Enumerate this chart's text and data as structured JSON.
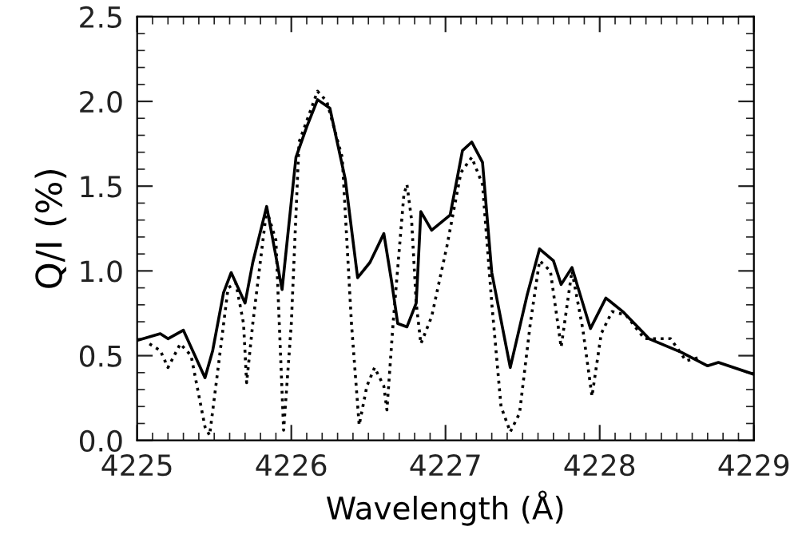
{
  "chart_data": {
    "type": "line",
    "xlabel": "Wavelength (Å)",
    "ylabel": "Q/I (%)",
    "xlim": [
      4225,
      4229
    ],
    "xticks": [
      4225,
      4226,
      4227,
      4228,
      4229
    ],
    "ylim": [
      0,
      2.5
    ],
    "yticks": [
      {
        "value": 0,
        "label": "0.0"
      },
      0.5,
      {
        "value": 1,
        "label": "1.0"
      },
      1.5,
      {
        "value": 2,
        "label": "2.0"
      },
      2.5
    ],
    "grid": false,
    "legend": false,
    "marker": "none",
    "series": [
      {
        "color": "#000000",
        "line_style": "solid",
        "x": [
          4225.0,
          4225.15,
          4225.2,
          4225.3,
          4225.44,
          4225.49,
          4225.56,
          4225.61,
          4225.7,
          4225.75,
          4225.84,
          4225.94,
          4226.03,
          4226.1,
          4226.17,
          4226.25,
          4226.35,
          4226.43,
          4226.51,
          4226.6,
          4226.65,
          4226.69,
          4226.75,
          4226.81,
          4226.84,
          4226.91,
          4227.03,
          4227.11,
          4227.17,
          4227.24,
          4227.3,
          4227.42,
          4227.53,
          4227.61,
          4227.7,
          4227.75,
          4227.82,
          4227.89,
          4227.94,
          4228.04,
          4228.15,
          4228.32,
          4228.53,
          4228.7,
          4228.77,
          4229.0
        ],
        "values": [
          0.59,
          0.63,
          0.6,
          0.65,
          0.37,
          0.53,
          0.87,
          0.99,
          0.81,
          1.05,
          1.38,
          0.89,
          1.67,
          1.85,
          2.01,
          1.96,
          1.54,
          0.96,
          1.05,
          1.22,
          0.94,
          0.69,
          0.67,
          0.81,
          1.35,
          1.24,
          1.33,
          1.71,
          1.76,
          1.64,
          0.99,
          0.43,
          0.86,
          1.13,
          1.06,
          0.92,
          1.02,
          0.81,
          0.66,
          0.84,
          0.76,
          0.6,
          0.52,
          0.44,
          0.46,
          0.39
        ]
      },
      {
        "color": "#000000",
        "line_style": "dotted",
        "x": [
          4225.08,
          4225.15,
          4225.2,
          4225.28,
          4225.35,
          4225.44,
          4225.47,
          4225.52,
          4225.59,
          4225.64,
          4225.69,
          4225.71,
          4225.75,
          4225.84,
          4225.9,
          4225.95,
          4226.0,
          4226.05,
          4226.11,
          4226.17,
          4226.23,
          4226.33,
          4226.39,
          4226.44,
          4226.49,
          4226.54,
          4226.6,
          4226.62,
          4226.66,
          4226.73,
          4226.75,
          4226.78,
          4226.81,
          4226.84,
          4226.91,
          4227.01,
          4227.1,
          4227.17,
          4227.24,
          4227.3,
          4227.36,
          4227.42,
          4227.48,
          4227.55,
          4227.61,
          4227.68,
          4227.75,
          4227.82,
          4227.89,
          4227.95,
          4228.01,
          4228.08,
          4228.17,
          4228.29,
          4228.46,
          4228.56,
          4228.65
        ],
        "values": [
          0.57,
          0.53,
          0.43,
          0.57,
          0.5,
          0.08,
          0.03,
          0.39,
          0.9,
          0.93,
          0.69,
          0.34,
          0.69,
          1.36,
          1.18,
          0.06,
          0.69,
          1.76,
          1.91,
          2.06,
          2.0,
          1.67,
          0.69,
          0.09,
          0.32,
          0.43,
          0.32,
          0.18,
          0.69,
          1.45,
          1.51,
          1.3,
          0.81,
          0.57,
          0.73,
          1.15,
          1.58,
          1.67,
          1.51,
          0.81,
          0.2,
          0.05,
          0.16,
          0.69,
          1.06,
          1.0,
          0.55,
          1.0,
          0.66,
          0.26,
          0.63,
          0.76,
          0.74,
          0.6,
          0.6,
          0.47,
          0.49
        ]
      }
    ]
  }
}
